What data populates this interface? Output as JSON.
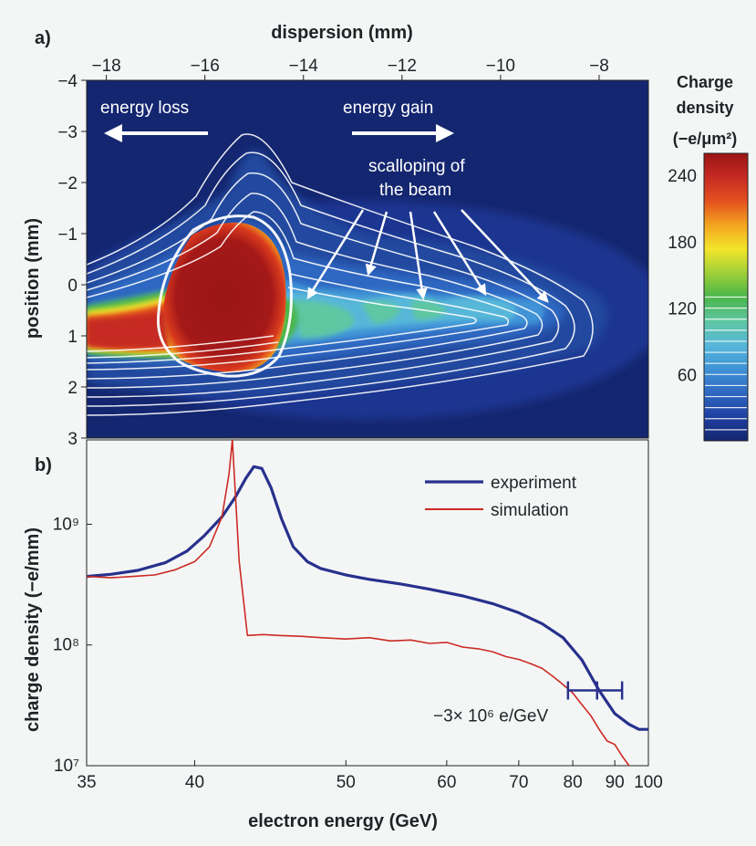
{
  "figure": {
    "panel_a_label": "a)",
    "panel_b_label": "b)"
  },
  "chart_data": [
    {
      "type": "heatmap",
      "panel": "a)",
      "xlabel": "dispersion (mm)",
      "ylabel": "position (mm)",
      "xlim": [
        -18.4,
        -7.0
      ],
      "ylim": [
        3,
        -4
      ],
      "x_ticks": [
        "−18",
        "−16",
        "−14",
        "−12",
        "−10",
        "−8"
      ],
      "x_tick_values": [
        -18,
        -16,
        -14,
        -12,
        -10,
        -8
      ],
      "y_ticks": [
        "−4",
        "−3",
        "−2",
        "−1",
        "0",
        "1",
        "2",
        "3"
      ],
      "y_tick_values": [
        -4,
        -3,
        -2,
        -1,
        0,
        1,
        2,
        3
      ],
      "colorbar": {
        "title_lines": [
          "Charge",
          "density",
          "(−e/μm²)"
        ],
        "ticks": [
          "240",
          "180",
          "120",
          "60"
        ],
        "tick_values": [
          240,
          180,
          120,
          60
        ],
        "range": [
          0,
          260
        ],
        "colors": [
          "#14266f",
          "#1f3fa0",
          "#2f68c2",
          "#3f93d6",
          "#56b7d9",
          "#5fc7a2",
          "#49b54a",
          "#9fcf38",
          "#f3e52a",
          "#f3a51f",
          "#e4511f",
          "#c62a23",
          "#9b1515"
        ]
      },
      "annotations": {
        "energy_loss": "energy loss",
        "energy_gain": "energy gain",
        "scalloping_line1": "scalloping of",
        "scalloping_line2": "the beam"
      },
      "grid": false
    },
    {
      "type": "line",
      "panel": "b)",
      "xlabel": "electron energy (GeV)",
      "ylabel": "charge density (−e/mm)",
      "x_scale": "reciprocal",
      "y_scale": "log",
      "xlim": [
        35,
        100
      ],
      "ylim": [
        10000000,
        5000000000
      ],
      "x_ticks": [
        "35",
        "40",
        "50",
        "60",
        "70",
        "80",
        "90",
        "100"
      ],
      "x_tick_values": [
        35,
        40,
        50,
        60,
        70,
        80,
        90,
        100
      ],
      "y_ticks": [
        "10⁷",
        "10⁸",
        "10⁹"
      ],
      "y_tick_values": [
        10000000,
        100000000,
        1000000000
      ],
      "legend_position": "top-right",
      "series": [
        {
          "name": "experiment",
          "color": "#27318c",
          "x": [
            35,
            36,
            37.2,
            38.5,
            39.6,
            40.5,
            41.5,
            42.3,
            42.9,
            43.4,
            43.9,
            44.5,
            45.2,
            46,
            47,
            48,
            50,
            52,
            55,
            58,
            62,
            66,
            70,
            74,
            78,
            82,
            86,
            90,
            94,
            97,
            100
          ],
          "y": [
            370000000,
            385000000,
            415000000,
            480000000,
            600000000,
            800000000,
            1150000000,
            1700000000,
            2400000000,
            3000000000,
            2900000000,
            2000000000,
            1100000000,
            650000000,
            490000000,
            430000000,
            380000000,
            350000000,
            320000000,
            290000000,
            255000000,
            220000000,
            185000000,
            150000000,
            115000000,
            75000000,
            42000000,
            27000000,
            22000000,
            20000000,
            20000000
          ]
        },
        {
          "name": "simulation",
          "color": "#cc2a22",
          "x": [
            35,
            36,
            37,
            38,
            39,
            40,
            40.8,
            41.5,
            41.9,
            42.1,
            42.5,
            43,
            44,
            45,
            46.5,
            48,
            50,
            52,
            54,
            56,
            58,
            60,
            62,
            64,
            66,
            68,
            70,
            72,
            74,
            76,
            78,
            80,
            82,
            84,
            86,
            88,
            90,
            92,
            94,
            96
          ],
          "y": [
            370000000,
            360000000,
            370000000,
            380000000,
            420000000,
            490000000,
            650000000,
            1150000000,
            2600000000,
            5000000000,
            500000000,
            120000000,
            122000000,
            120000000,
            118000000,
            115000000,
            112000000,
            115000000,
            108000000,
            110000000,
            103000000,
            105000000,
            96000000,
            93000000,
            88000000,
            80000000,
            76000000,
            70000000,
            64000000,
            55000000,
            47000000,
            40000000,
            32000000,
            26000000,
            20000000,
            16000000,
            15000000,
            12000000,
            10000000,
            8000000
          ]
        }
      ],
      "annotation": {
        "text": "−3× 10⁶ e/GeV",
        "bar_center_x": 85.5,
        "bar_half_width": 6.5,
        "bar_y": 42000000
      },
      "grid": false
    }
  ]
}
